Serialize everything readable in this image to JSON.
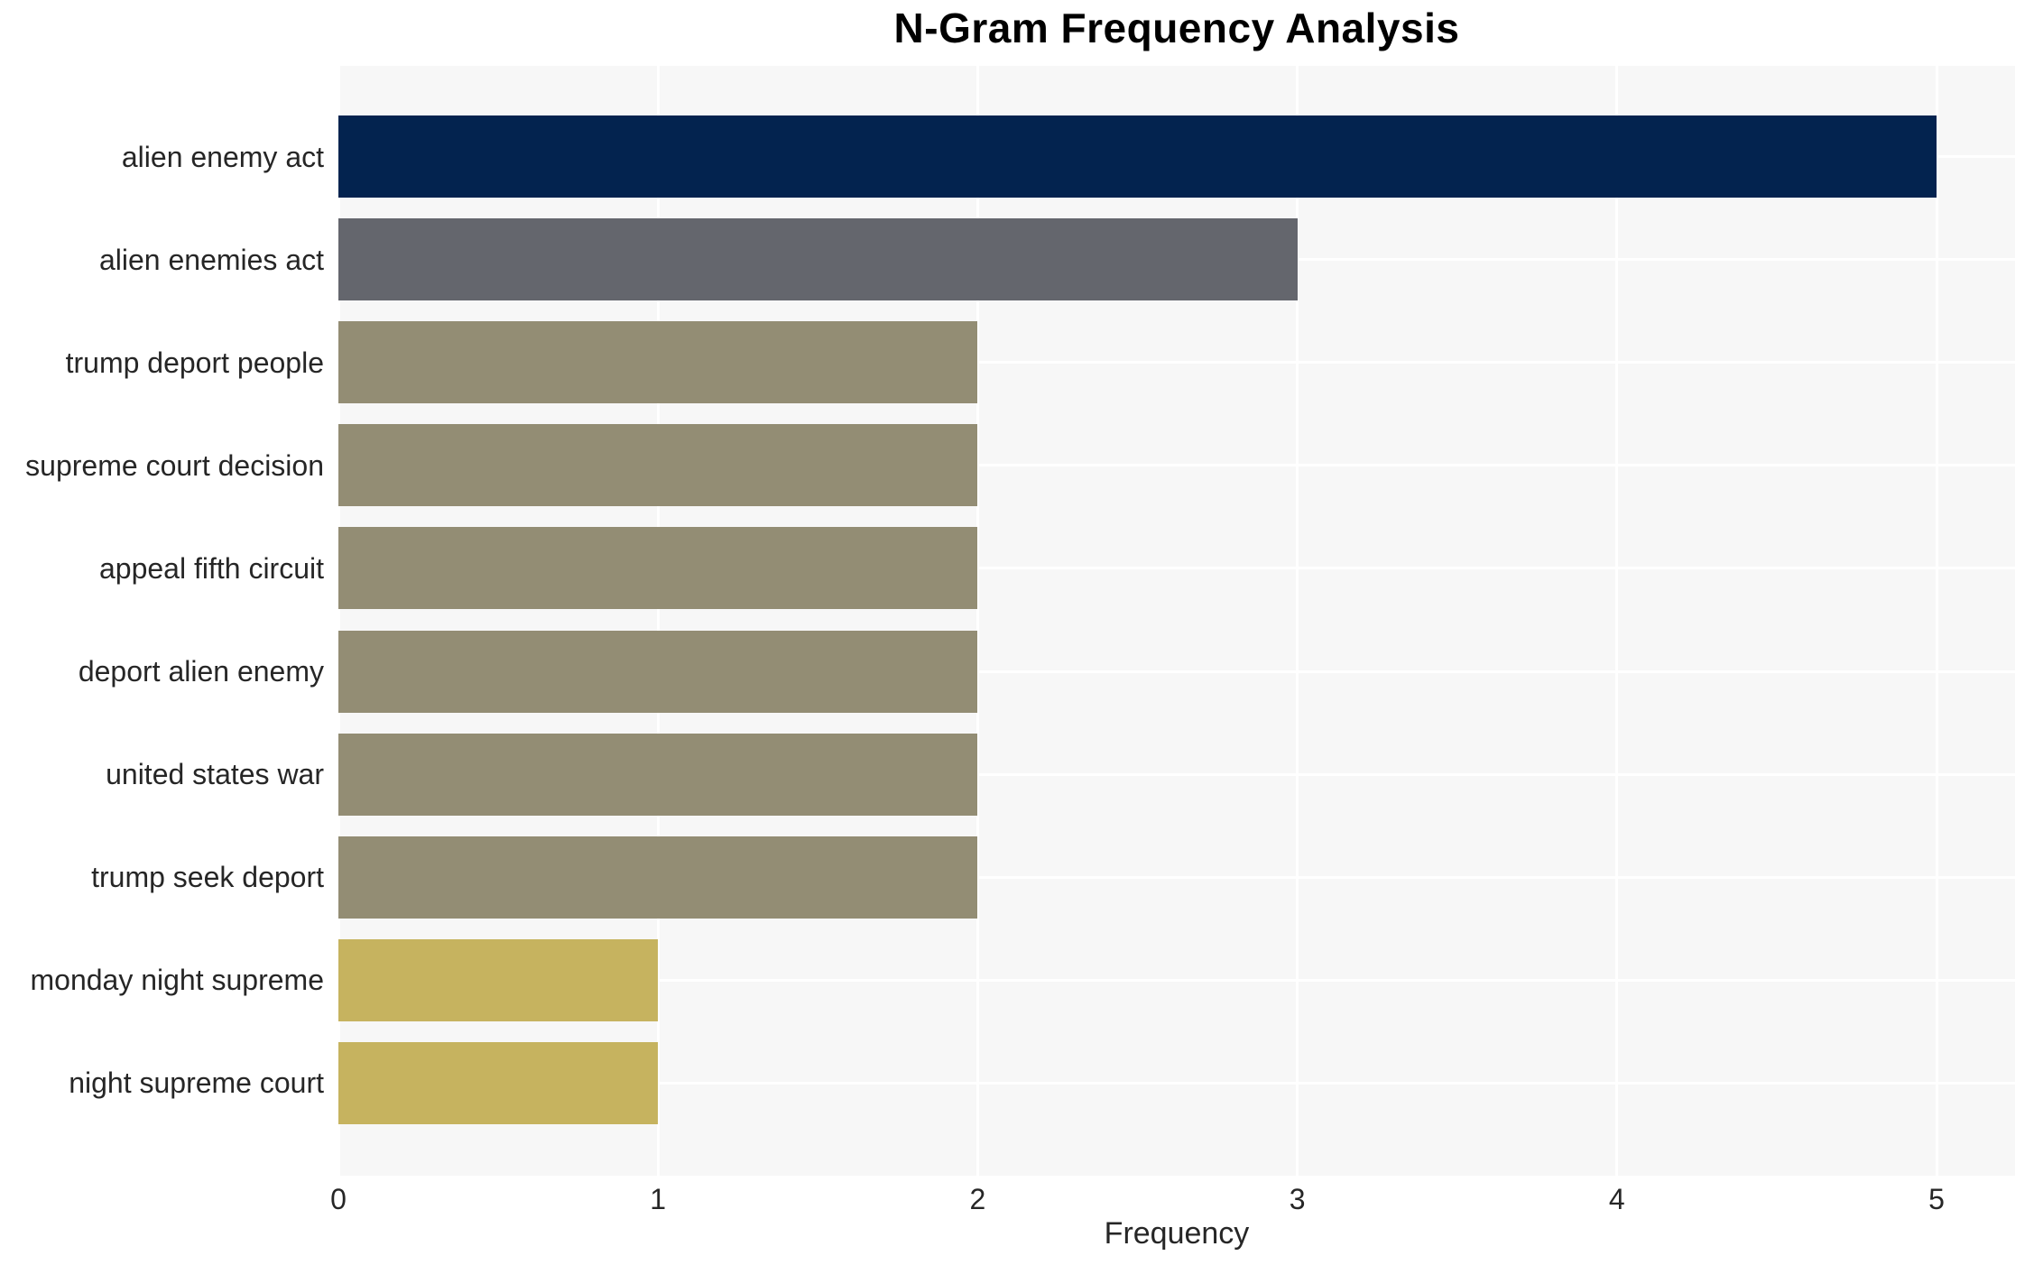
{
  "chart_data": {
    "type": "bar",
    "orientation": "horizontal",
    "title": "N-Gram Frequency Analysis",
    "xlabel": "Frequency",
    "ylabel": "",
    "categories": [
      "alien enemy act",
      "alien enemies act",
      "trump deport people",
      "supreme court decision",
      "appeal fifth circuit",
      "deport alien enemy",
      "united states war",
      "trump seek deport",
      "monday night supreme",
      "night supreme court"
    ],
    "values": [
      5,
      3,
      2,
      2,
      2,
      2,
      2,
      2,
      1,
      1
    ],
    "bar_colors": [
      "#03234f",
      "#64666d",
      "#938d74",
      "#938d74",
      "#938d74",
      "#938d74",
      "#938d74",
      "#938d74",
      "#c6b35f",
      "#c6b35f"
    ],
    "xticks": [
      "0",
      "1",
      "2",
      "3",
      "4",
      "5"
    ],
    "xtick_values": [
      0,
      1,
      2,
      3,
      4,
      5
    ],
    "xlim": [
      0,
      5.24
    ],
    "grid": true,
    "legend": "none",
    "colors": {
      "plot_background": "#f7f7f7",
      "gridline": "#ffffff",
      "tick_text": "#262626",
      "title_text": "#000000"
    }
  }
}
